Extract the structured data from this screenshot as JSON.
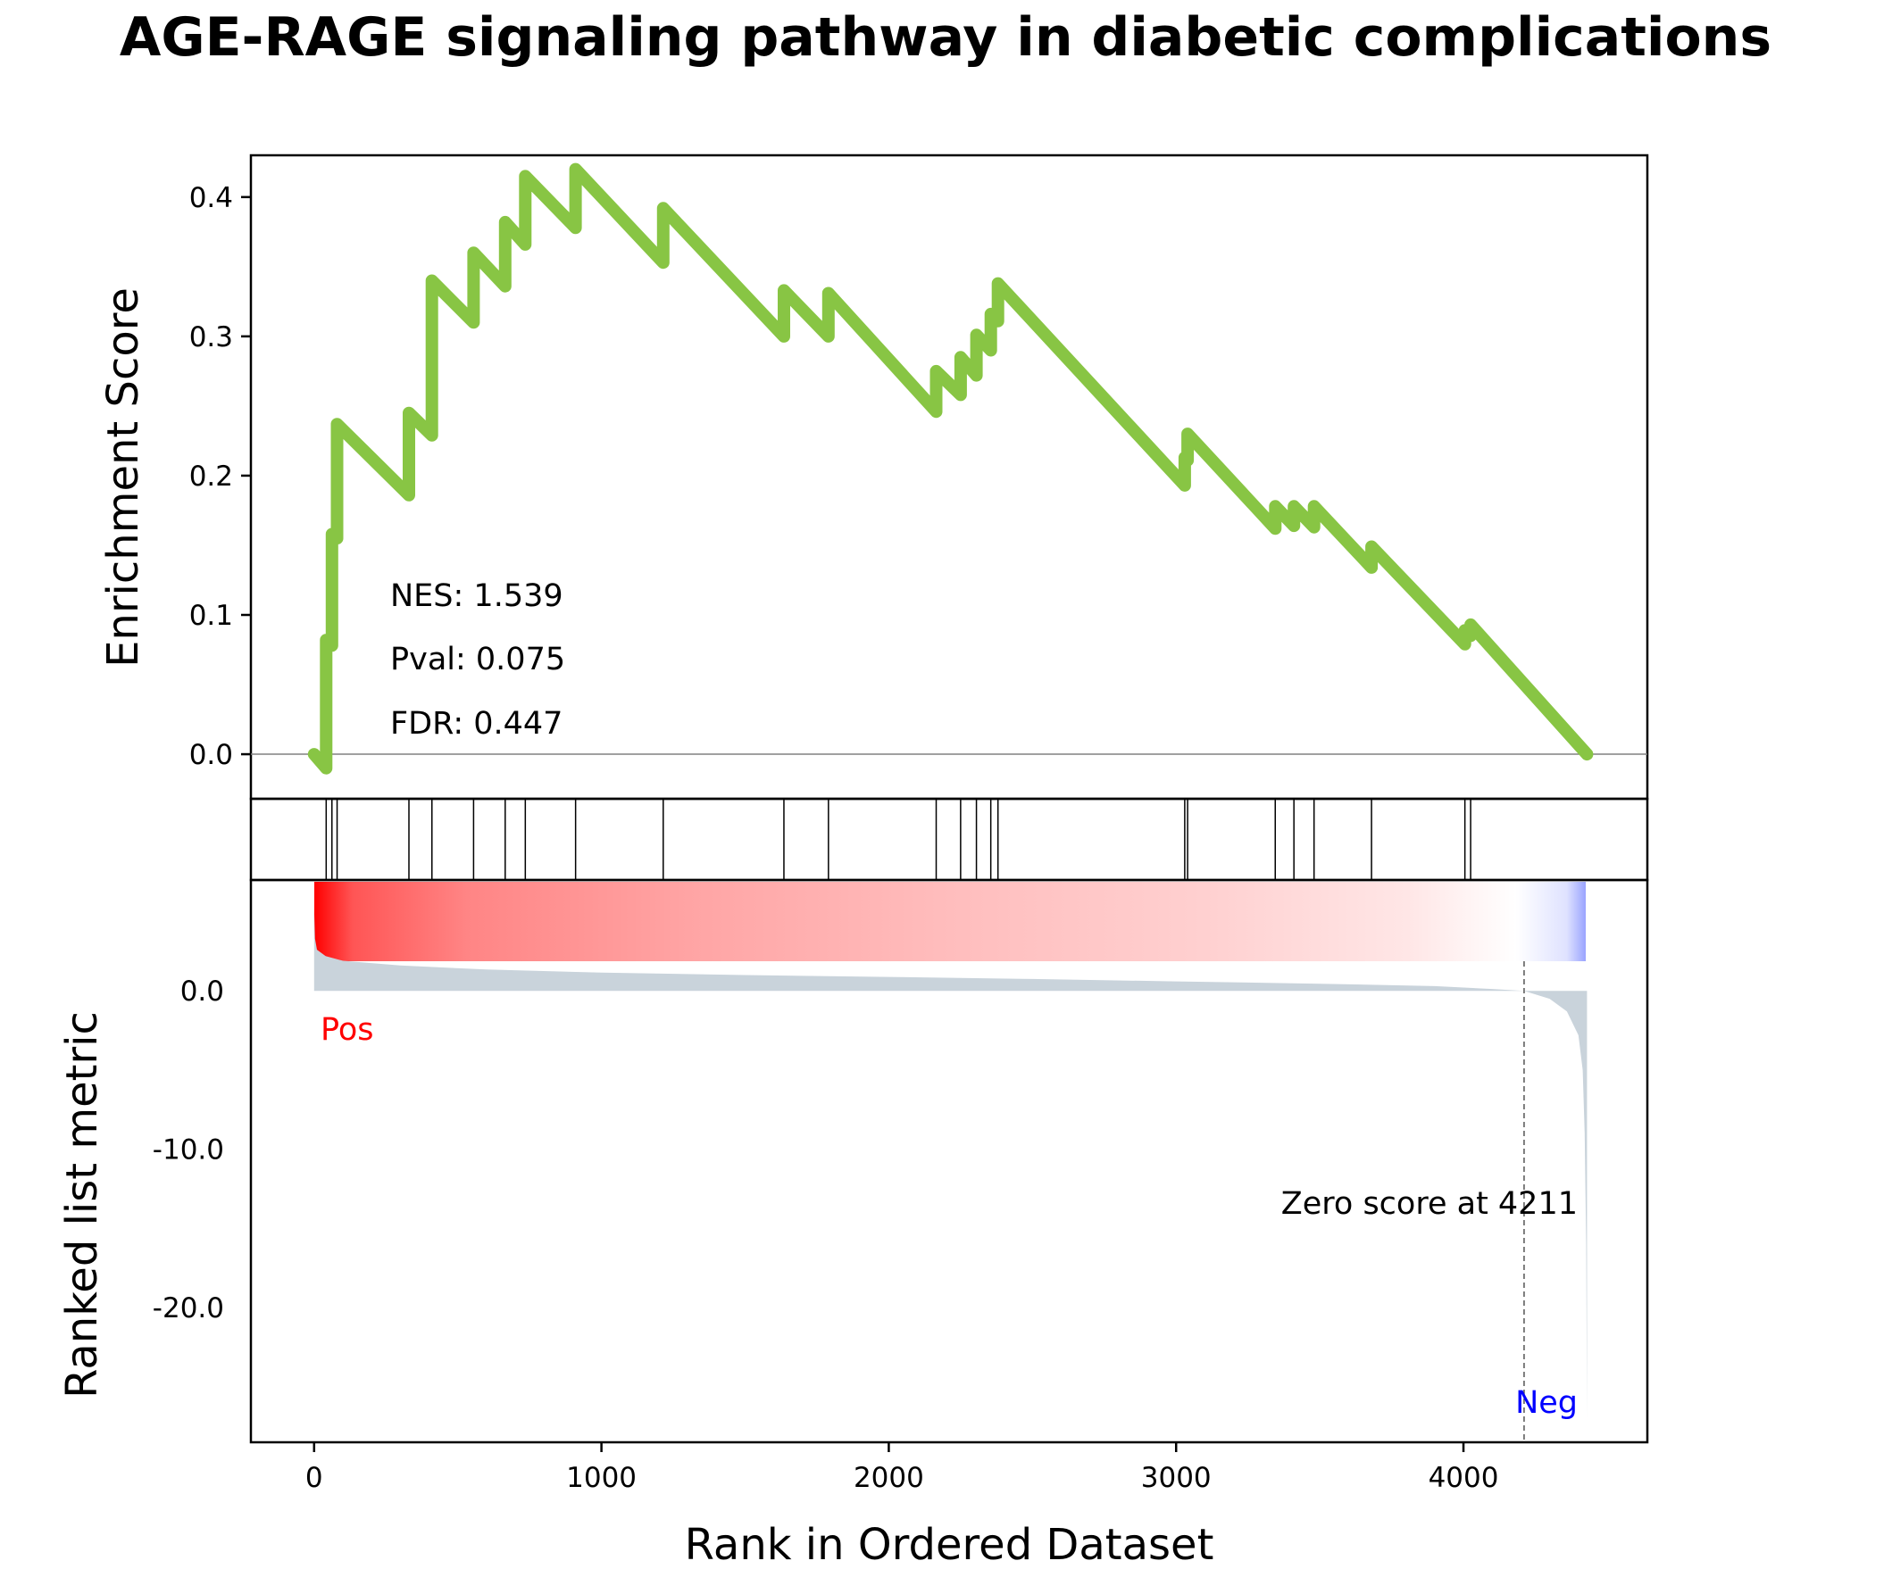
{
  "chart_data": {
    "type": "line",
    "title": "AGE-RAGE signaling pathway in diabetic complications",
    "xlabel": "Rank in Ordered Dataset",
    "es_ylabel": "Enrichment Score",
    "metric_ylabel": "Ranked list metric",
    "xlim": [
      -220,
      4640
    ],
    "xticks": [
      0,
      1000,
      2000,
      3000,
      4000
    ],
    "es_ylim": [
      -0.032,
      0.43
    ],
    "es_yticks": [
      0.0,
      0.1,
      0.2,
      0.3,
      0.4
    ],
    "metric_ylim": [
      -28.5,
      7.0
    ],
    "metric_yticks": [
      0.0,
      -10.0,
      -20.0
    ],
    "stats": {
      "nes": "NES: 1.539",
      "pval": "Pval: 0.075",
      "fdr": "FDR: 0.447"
    },
    "zero_score_label": "Zero score at 4211",
    "zero_score_rank": 4211,
    "pos_label": "Pos",
    "neg_label": "Neg",
    "n_genes": 4430,
    "hit_ranks": [
      42,
      62,
      80,
      330,
      410,
      555,
      665,
      735,
      910,
      1215,
      1635,
      1790,
      2165,
      2250,
      2305,
      2355,
      2380,
      3030,
      3040,
      3345,
      3410,
      3480,
      3680,
      4005,
      4025
    ],
    "running_es": [
      [
        0,
        0.0
      ],
      [
        42,
        -0.01
      ],
      [
        42,
        0.082
      ],
      [
        62,
        0.078
      ],
      [
        62,
        0.158
      ],
      [
        80,
        0.155
      ],
      [
        80,
        0.237
      ],
      [
        330,
        0.186
      ],
      [
        330,
        0.245
      ],
      [
        410,
        0.229
      ],
      [
        410,
        0.34
      ],
      [
        555,
        0.31
      ],
      [
        555,
        0.36
      ],
      [
        665,
        0.336
      ],
      [
        665,
        0.382
      ],
      [
        735,
        0.366
      ],
      [
        735,
        0.415
      ],
      [
        910,
        0.378
      ],
      [
        910,
        0.42
      ],
      [
        1215,
        0.353
      ],
      [
        1215,
        0.392
      ],
      [
        1635,
        0.3
      ],
      [
        1635,
        0.333
      ],
      [
        1790,
        0.3
      ],
      [
        1790,
        0.331
      ],
      [
        2165,
        0.246
      ],
      [
        2165,
        0.275
      ],
      [
        2250,
        0.258
      ],
      [
        2250,
        0.285
      ],
      [
        2305,
        0.272
      ],
      [
        2305,
        0.301
      ],
      [
        2355,
        0.29
      ],
      [
        2355,
        0.316
      ],
      [
        2380,
        0.311
      ],
      [
        2380,
        0.338
      ],
      [
        3030,
        0.193
      ],
      [
        3030,
        0.213
      ],
      [
        3040,
        0.211
      ],
      [
        3040,
        0.23
      ],
      [
        3345,
        0.162
      ],
      [
        3345,
        0.178
      ],
      [
        3410,
        0.164
      ],
      [
        3410,
        0.178
      ],
      [
        3480,
        0.163
      ],
      [
        3480,
        0.178
      ],
      [
        3680,
        0.134
      ],
      [
        3680,
        0.149
      ],
      [
        4005,
        0.079
      ],
      [
        4005,
        0.089
      ],
      [
        4025,
        0.085
      ],
      [
        4025,
        0.093
      ],
      [
        4430,
        0.0
      ]
    ],
    "ranked_metric": [
      [
        0,
        5.2
      ],
      [
        3,
        3.3
      ],
      [
        10,
        2.6
      ],
      [
        40,
        2.2
      ],
      [
        100,
        1.9
      ],
      [
        300,
        1.6
      ],
      [
        600,
        1.35
      ],
      [
        1000,
        1.15
      ],
      [
        1500,
        1.0
      ],
      [
        2000,
        0.88
      ],
      [
        2500,
        0.75
      ],
      [
        3000,
        0.6
      ],
      [
        3500,
        0.45
      ],
      [
        3900,
        0.3
      ],
      [
        4100,
        0.12
      ],
      [
        4211,
        0.0
      ],
      [
        4300,
        -0.5
      ],
      [
        4360,
        -1.3
      ],
      [
        4400,
        -2.8
      ],
      [
        4415,
        -5.0
      ],
      [
        4422,
        -9.0
      ],
      [
        4427,
        -16.0
      ],
      [
        4430,
        -27.0
      ]
    ],
    "colors": {
      "es_line": "#88c544",
      "metric_fill": "#c9d3db",
      "pos": "#ff0000",
      "neg": "#0000ff",
      "zero_line": "#808080"
    }
  }
}
